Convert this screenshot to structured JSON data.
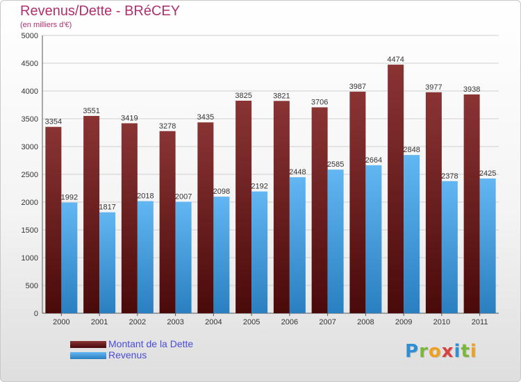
{
  "title": "Revenus/Dette - BRéCEY",
  "subtitle": "(en milliers d'€)",
  "logo": {
    "letters": [
      {
        "ch": "P",
        "color": "#2f8fd6"
      },
      {
        "ch": "r",
        "color": "#7bb83a"
      },
      {
        "ch": "o",
        "color": "#f0a020"
      },
      {
        "ch": "x",
        "color": "#d94040"
      },
      {
        "ch": "i",
        "color": "#2f8fd6"
      },
      {
        "ch": "t",
        "color": "#7bb83a"
      },
      {
        "ch": "i",
        "color": "#f0a020"
      }
    ]
  },
  "chart_data": {
    "type": "bar",
    "categories": [
      "2000",
      "2001",
      "2002",
      "2003",
      "2004",
      "2005",
      "2006",
      "2007",
      "2008",
      "2009",
      "2010",
      "2011"
    ],
    "series": [
      {
        "name": "Montant de la Dette",
        "color": "#7a2a2a",
        "values": [
          3354,
          3551,
          3419,
          3278,
          3435,
          3825,
          3821,
          3706,
          3987,
          4474,
          3977,
          3938
        ]
      },
      {
        "name": "Revenus",
        "color": "#4aa2e0",
        "values": [
          1992,
          1817,
          2018,
          2007,
          2098,
          2192,
          2448,
          2585,
          2664,
          2848,
          2378,
          2425
        ]
      }
    ],
    "yticks": [
      0,
      500,
      1000,
      1500,
      2000,
      2500,
      3000,
      3500,
      4000,
      4500,
      5000
    ],
    "ylim": [
      0,
      5000
    ],
    "grid": true,
    "legend_position": "bottom-left"
  }
}
